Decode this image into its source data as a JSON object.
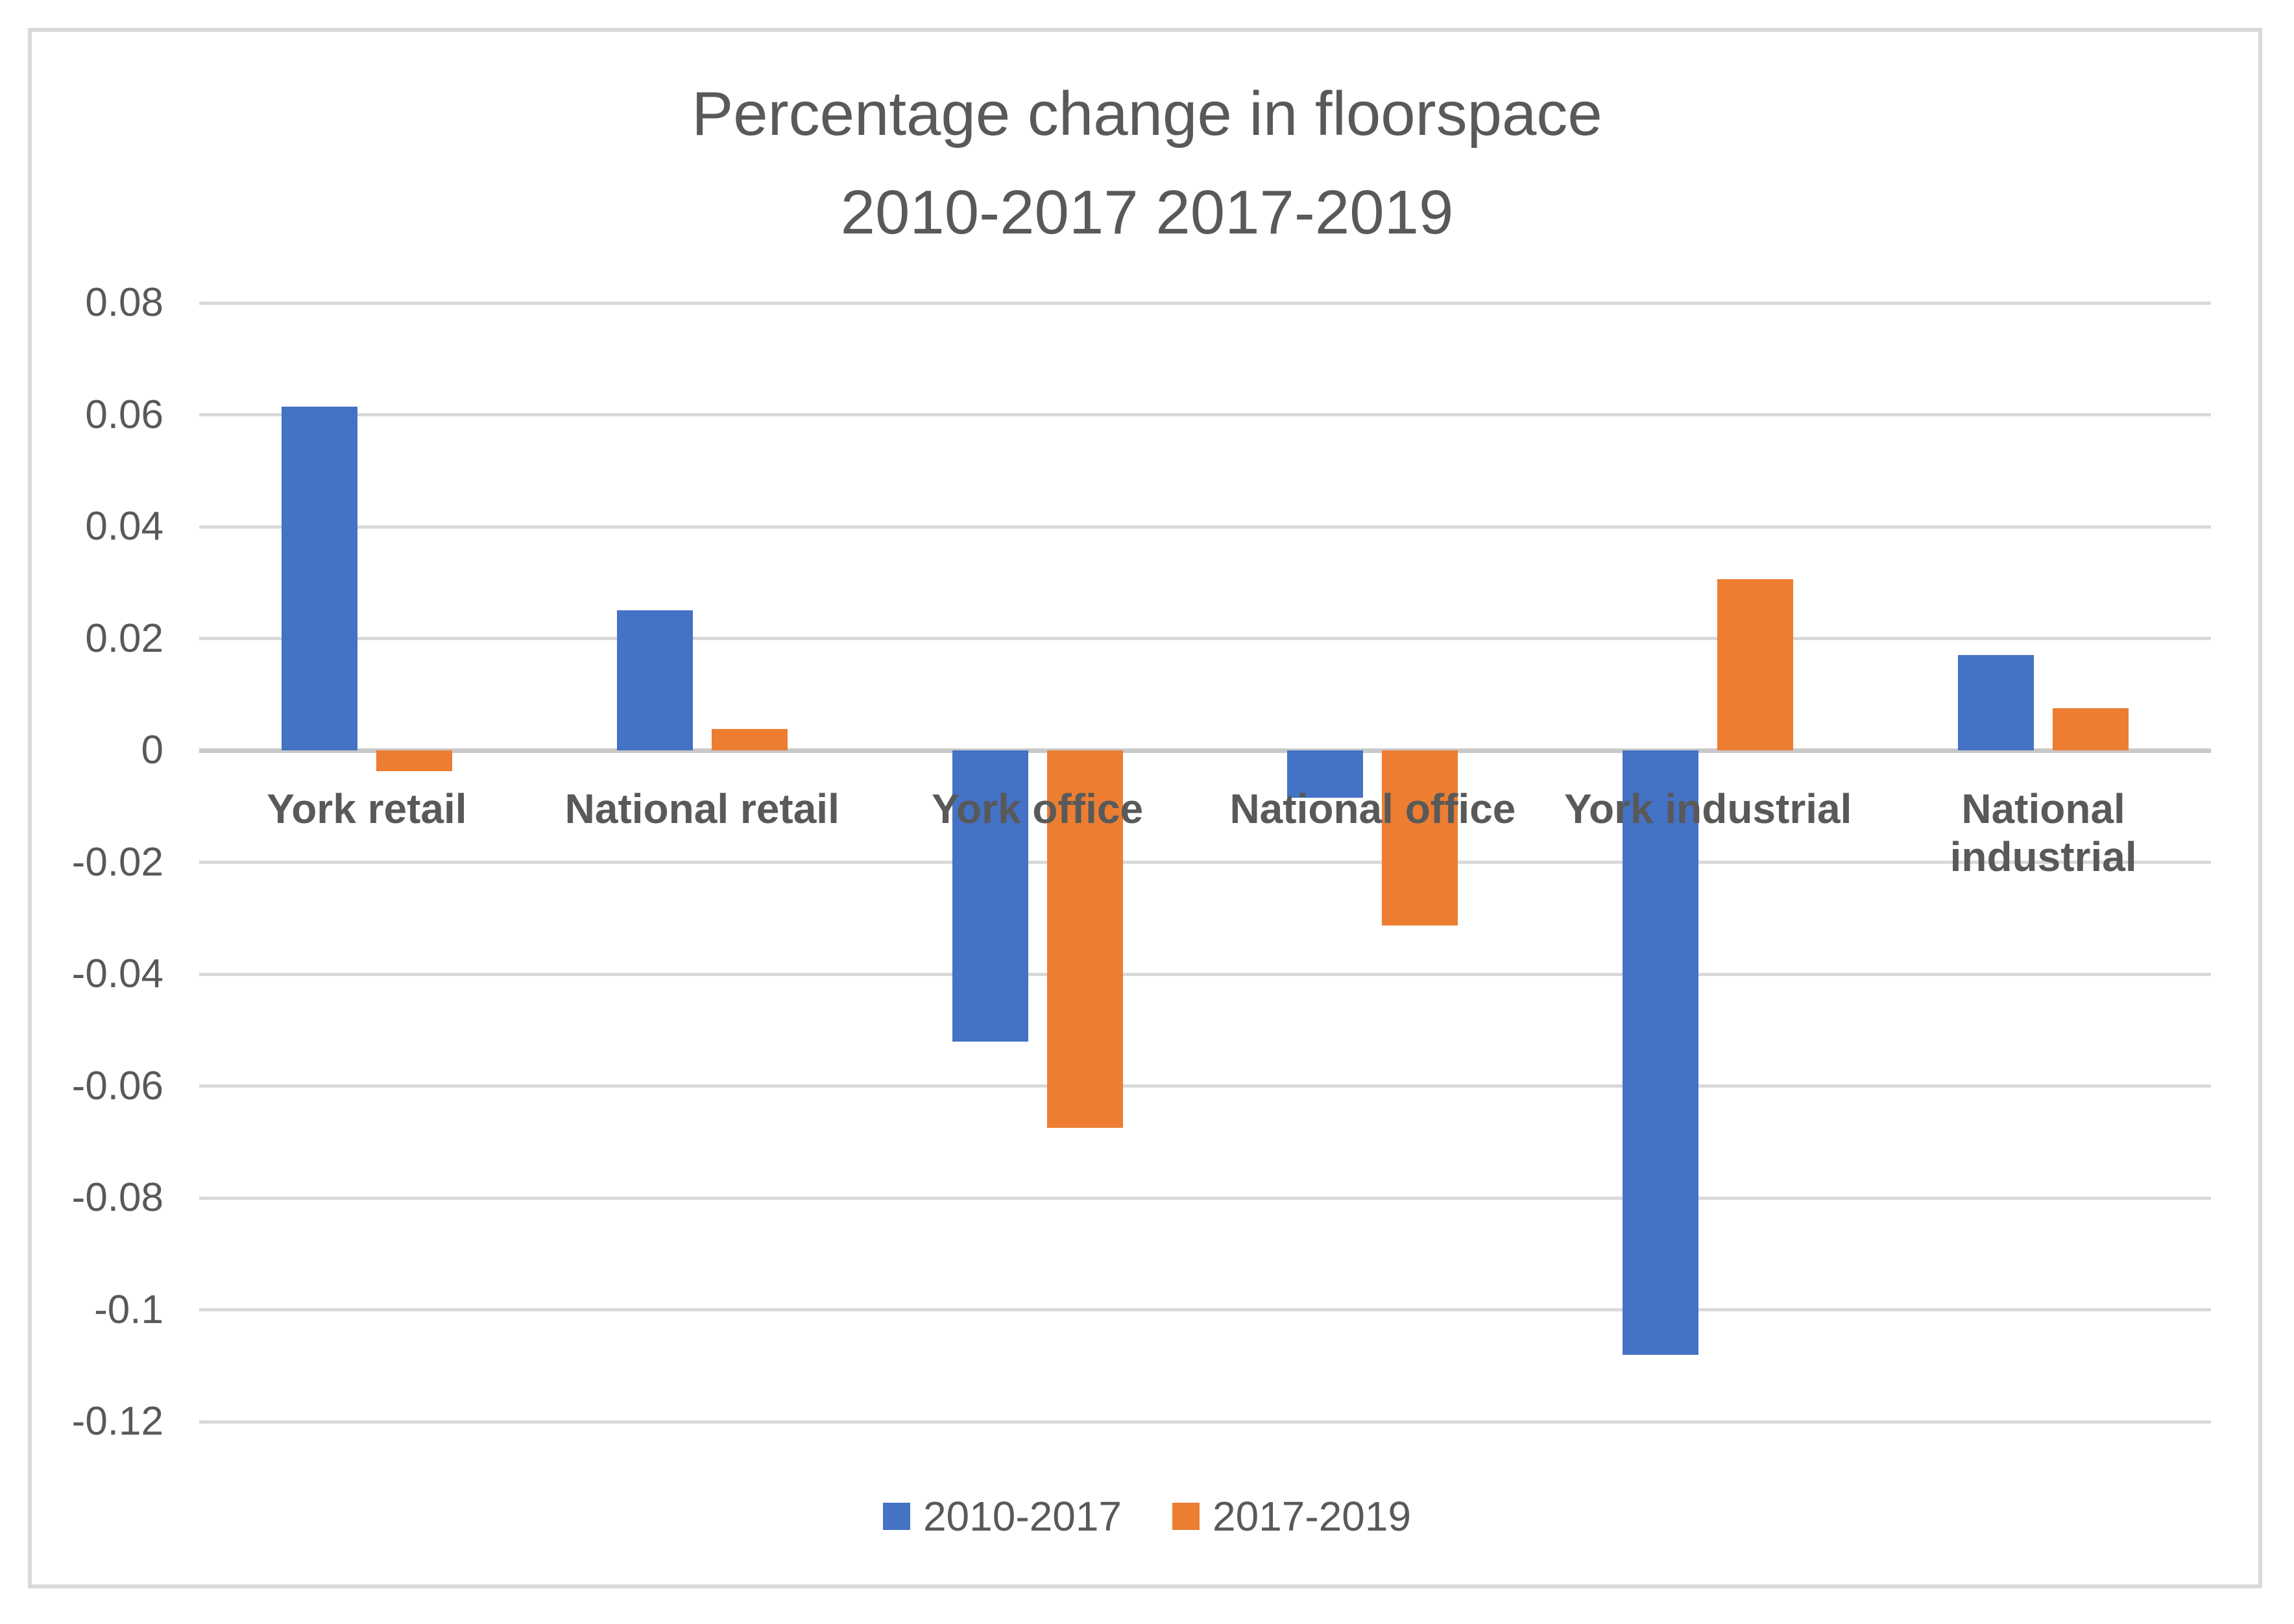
{
  "chart_data": {
    "type": "bar",
    "title_line1": "Percentage change in floorspace",
    "title_line2": "2010-2017 2017-2019",
    "categories": [
      "York retail",
      "National retail",
      "York office",
      "National office",
      "York industrial",
      "National industrial"
    ],
    "series": [
      {
        "name": "2010-2017",
        "color": "#4472C4",
        "values": [
          0.0615,
          0.025,
          -0.052,
          -0.0085,
          -0.108,
          0.017
        ]
      },
      {
        "name": "2017-2019",
        "color": "#ED7D31",
        "values": [
          -0.0037,
          0.0038,
          -0.0675,
          -0.0313,
          0.0306,
          0.0075
        ]
      }
    ],
    "yticks": [
      "0.08",
      "0.06",
      "0.04",
      "0.02",
      "0",
      "-0.02",
      "-0.04",
      "-0.06",
      "-0.08",
      "-0.1",
      "-0.12"
    ],
    "ylim": [
      -0.12,
      0.08
    ],
    "grid": true,
    "legend_position": "bottom",
    "colors": {
      "text": "#595959",
      "gridline": "#D9D9D9",
      "axis_line": "#C9C9C9",
      "border": "#D9D9D9",
      "background": "#FFFFFF"
    }
  }
}
